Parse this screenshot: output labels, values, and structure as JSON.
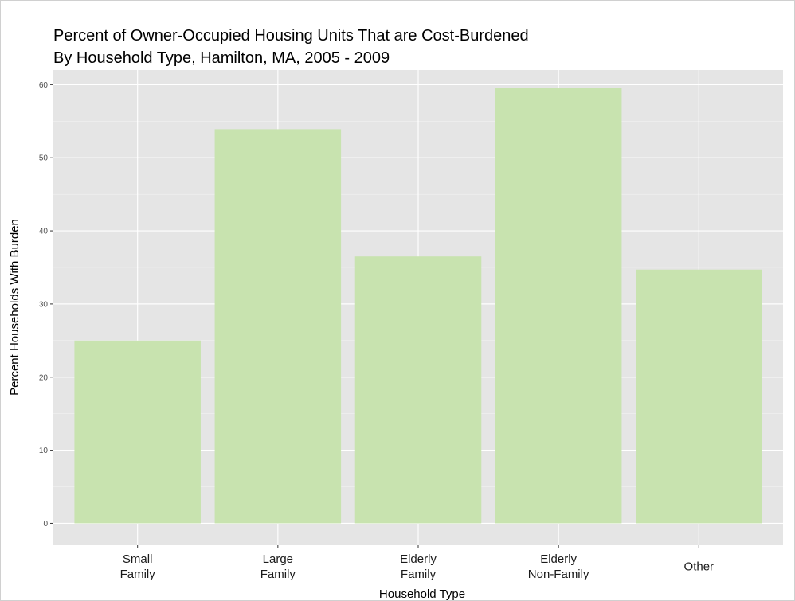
{
  "chart_data": {
    "type": "bar",
    "title": "Percent of Owner-Occupied Housing Units That are Cost-Burdened",
    "subtitle": "By Household Type, Hamilton, MA, 2005 - 2009",
    "x_label": "Household Type",
    "y_label": "Percent Households With Burden",
    "categories": [
      "Small\nFamily",
      "Large\nFamily",
      "Elderly\nFamily",
      "Elderly\nNon-Family",
      "Other"
    ],
    "values": [
      25,
      53.9,
      36.5,
      59.5,
      34.7
    ],
    "color": "#c8e3af",
    "ylim": [
      -3,
      62
    ],
    "yticks": [
      0,
      10,
      20,
      30,
      40,
      50,
      60
    ],
    "grid": true,
    "minor_grid": true
  }
}
